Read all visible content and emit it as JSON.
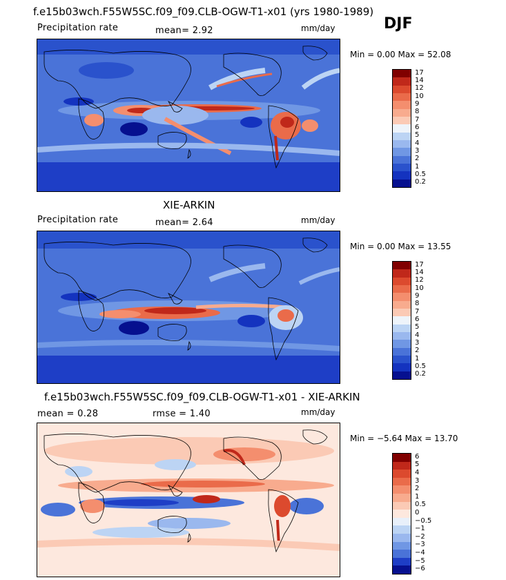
{
  "season": "DJF",
  "panels": [
    {
      "title": "f.e15b03wch.F55W5SC.f09_f09.CLB-OGW-T1-x01 (yrs 1980-1989)",
      "left_label": "Precipitation rate",
      "stat1": "mean=   2.92",
      "stat2": "",
      "units": "mm/day",
      "minmax": "Min =    0.00 Max =  52.08",
      "field": "model-precip",
      "levels": [
        "17",
        "14",
        "12",
        "10",
        "9",
        "8",
        "7",
        "6",
        "5",
        "4",
        "3",
        "2",
        "1",
        "0.5",
        "0.2"
      ],
      "colors": [
        "#800000",
        "#c0281a",
        "#dc4a2e",
        "#ea6b4a",
        "#f48e6e",
        "#f8ab8e",
        "#fbcab5",
        "#eef4fa",
        "#bcd4f4",
        "#9ab8ee",
        "#7097e4",
        "#4a73d8",
        "#2a52cc",
        "#1433bf",
        "#06108f"
      ]
    },
    {
      "title": "XIE-ARKIN",
      "left_label": "Precipitation rate",
      "stat1": "mean=   2.64",
      "stat2": "",
      "units": "mm/day",
      "minmax": "Min =    0.00 Max =  13.55",
      "field": "obs-precip",
      "levels": [
        "17",
        "14",
        "12",
        "10",
        "9",
        "8",
        "7",
        "6",
        "5",
        "4",
        "3",
        "2",
        "1",
        "0.5",
        "0.2"
      ],
      "colors": [
        "#800000",
        "#c0281a",
        "#dc4a2e",
        "#ea6b4a",
        "#f48e6e",
        "#f8ab8e",
        "#fbcab5",
        "#eef4fa",
        "#bcd4f4",
        "#9ab8ee",
        "#7097e4",
        "#4a73d8",
        "#2a52cc",
        "#1433bf",
        "#06108f"
      ]
    },
    {
      "title": "f.e15b03wch.F55W5SC.f09_f09.CLB-OGW-T1-x01 - XIE-ARKIN",
      "left_label": "mean =    0.28",
      "stat1": "",
      "stat2": "rmse =    1.40",
      "units": "mm/day",
      "minmax": "Min =  −5.64 Max =  13.70",
      "field": "difference",
      "levels": [
        "6",
        "5",
        "4",
        "3",
        "2",
        "1",
        "0.5",
        "0",
        "−0.5",
        "−1",
        "−2",
        "−3",
        "−4",
        "−5",
        "−6"
      ],
      "colors": [
        "#800000",
        "#c0281a",
        "#dc4a2e",
        "#ea6b4a",
        "#f48e6e",
        "#f8ab8e",
        "#fbcab5",
        "#fde8de",
        "#e8f0fa",
        "#bcd4f4",
        "#9ab8ee",
        "#7097e4",
        "#4a73d8",
        "#1e3ec6",
        "#06108f"
      ]
    }
  ]
}
